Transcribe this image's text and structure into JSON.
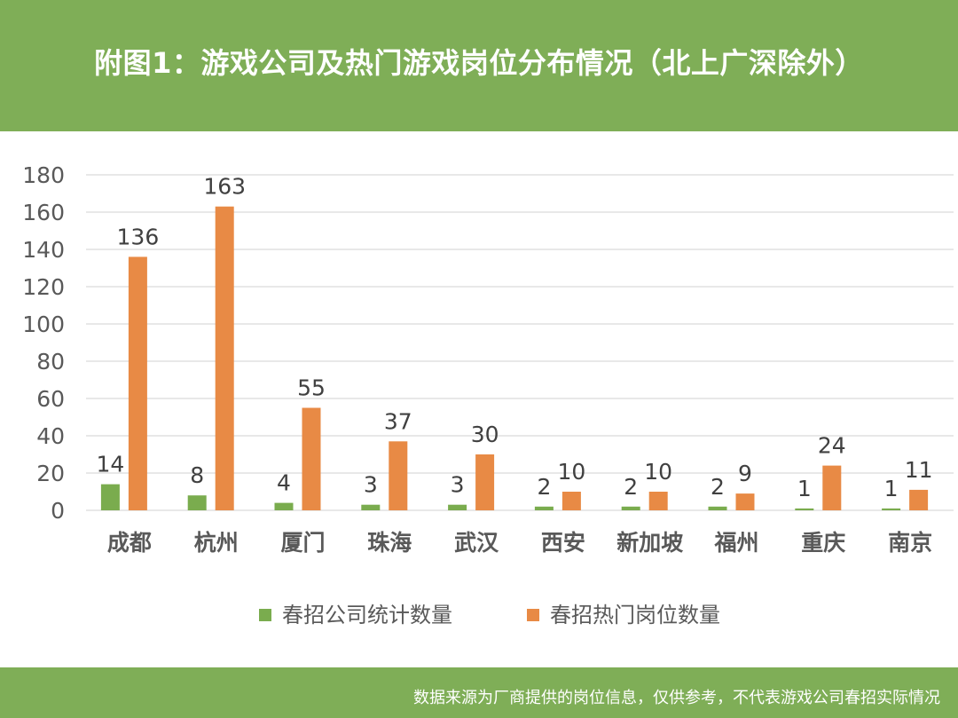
{
  "title": "附图1：游戏公司及热门游戏岗位分布情况（北上广深除外）",
  "footnote": "数据来源为厂商提供的岗位信息，仅供参考，不代表游戏公司春招实际情况",
  "colors": {
    "header_bg": "#7fae57",
    "series1": "#7aac4e",
    "series2": "#e88a45",
    "grid": "#d9d9d9",
    "text": "#595959"
  },
  "chart_data": {
    "type": "bar",
    "categories": [
      "成都",
      "杭州",
      "厦门",
      "珠海",
      "武汉",
      "西安",
      "新加坡",
      "福州",
      "重庆",
      "南京"
    ],
    "series": [
      {
        "name": "春招公司统计数量",
        "values": [
          14,
          8,
          4,
          3,
          3,
          2,
          2,
          2,
          1,
          1
        ]
      },
      {
        "name": "春招热门岗位数量",
        "values": [
          136,
          163,
          55,
          37,
          30,
          10,
          10,
          9,
          24,
          11
        ]
      }
    ],
    "ylim": [
      0,
      180
    ],
    "yticks": [
      0,
      20,
      40,
      60,
      80,
      100,
      120,
      140,
      160,
      180
    ],
    "xlabel": "",
    "ylabel": "",
    "grid": true,
    "legend": "bottom"
  }
}
